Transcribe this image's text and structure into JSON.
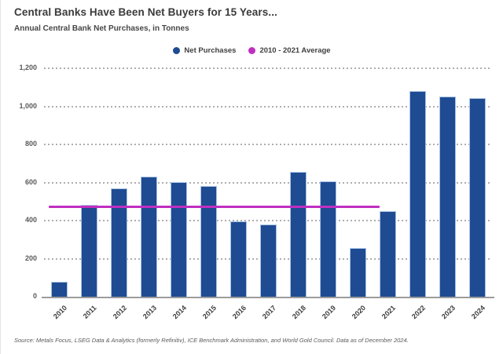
{
  "header": {
    "title": "Central Banks Have Been Net Buyers for 15 Years...",
    "subtitle": "Annual Central Bank Net Purchases, in Tonnes"
  },
  "legend": [
    {
      "label": "Net Purchases",
      "color": "#1e4b92"
    },
    {
      "label": "2010 - 2021 Average",
      "color": "#c02fc0"
    }
  ],
  "chart_data": {
    "type": "bar",
    "title": "Central Banks Have Been Net Buyers for 15 Years...",
    "subtitle": "Annual Central Bank Net Purchases, in Tonnes",
    "categories": [
      "2010",
      "2011",
      "2012",
      "2013",
      "2014",
      "2015",
      "2016",
      "2017",
      "2018",
      "2019",
      "2020",
      "2021",
      "2022",
      "2023",
      "2024"
    ],
    "series": [
      {
        "name": "Net Purchases",
        "values": [
          80,
          481,
          569,
          629,
          601,
          580,
          395,
          379,
          656,
          605,
          255,
          450,
          1082,
          1051,
          1045
        ],
        "color": "#1e4b92"
      }
    ],
    "average_line": {
      "name": "2010 - 2021 Average",
      "value": 473,
      "color": "#c02fc0",
      "covers": [
        "2010",
        "2021"
      ]
    },
    "xlabel": "",
    "ylabel": "",
    "ylim": [
      0,
      1200
    ],
    "ytick_step": 200,
    "ytick_labels": [
      "0",
      "200",
      "400",
      "600",
      "800",
      "1,000",
      "1,200"
    ],
    "grid": "horizontal-dotted",
    "legend_position": "top-center"
  },
  "footer": {
    "source": "Source: Metals Focus, LSEG Data & Analytics (formerly Refinitiv), ICE Benchmark Administration, and World Gold Council. Data as of December 2024."
  },
  "colors": {
    "bar": "#1e4b92",
    "bar_border": "#a9c3e4",
    "average_line": "#c02fc0",
    "gridline": "#aeaeae",
    "axis_line": "#9b9b9b",
    "title_text": "#3b3b3b",
    "tick_text": "#595959"
  }
}
